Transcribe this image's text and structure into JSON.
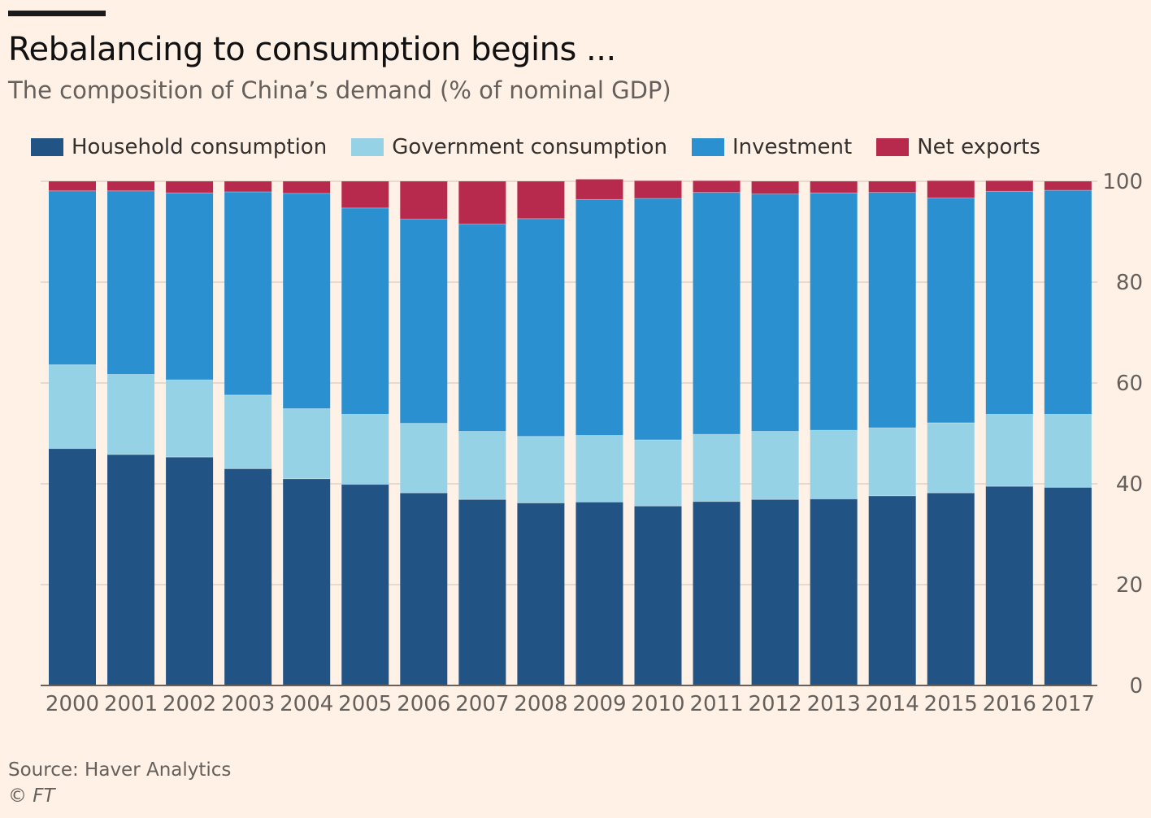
{
  "header": {
    "title": "Rebalancing to consumption begins ...",
    "subtitle": "The composition of China’s demand (% of nominal GDP)"
  },
  "footer": {
    "source": "Source: Haver Analytics",
    "credit": "© FT"
  },
  "colors": {
    "household": "#225385",
    "government": "#96d2e6",
    "investment": "#2b90cf",
    "net_exports": "#b7294d",
    "background": "#fff1e5",
    "gridline": "#e6d9ce",
    "axis": "#66605c"
  },
  "chart_data": {
    "type": "bar",
    "stacked": true,
    "categories": [
      "2000",
      "2001",
      "2002",
      "2003",
      "2004",
      "2005",
      "2006",
      "2007",
      "2008",
      "2009",
      "2010",
      "2011",
      "2012",
      "2013",
      "2014",
      "2015",
      "2016",
      "2017"
    ],
    "series": [
      {
        "name": "Household consumption",
        "values": [
          47.0,
          45.8,
          45.3,
          43.0,
          41.0,
          39.9,
          38.2,
          36.9,
          36.2,
          36.4,
          35.6,
          36.5,
          36.9,
          37.0,
          37.6,
          38.2,
          39.5,
          39.3
        ]
      },
      {
        "name": "Government consumption",
        "values": [
          16.6,
          15.9,
          15.3,
          14.6,
          13.9,
          13.9,
          13.8,
          13.5,
          13.2,
          13.2,
          13.1,
          13.3,
          13.5,
          13.6,
          13.5,
          13.9,
          14.3,
          14.5
        ]
      },
      {
        "name": "Investment",
        "values": [
          34.5,
          36.4,
          37.1,
          40.3,
          42.7,
          40.9,
          40.5,
          41.1,
          43.2,
          46.8,
          47.9,
          48.0,
          47.1,
          47.1,
          46.7,
          44.6,
          44.2,
          44.4
        ]
      },
      {
        "name": "Net exports",
        "values": [
          1.9,
          1.9,
          2.3,
          2.1,
          2.4,
          5.3,
          7.5,
          8.5,
          7.4,
          4.0,
          3.5,
          2.3,
          2.5,
          2.3,
          2.2,
          3.4,
          2.1,
          1.8
        ]
      }
    ],
    "ylim": [
      0,
      100
    ],
    "yticks": [
      0,
      20,
      40,
      60,
      80,
      100
    ],
    "grid": true,
    "y_axis_side": "right",
    "legend_position": "top-left"
  }
}
